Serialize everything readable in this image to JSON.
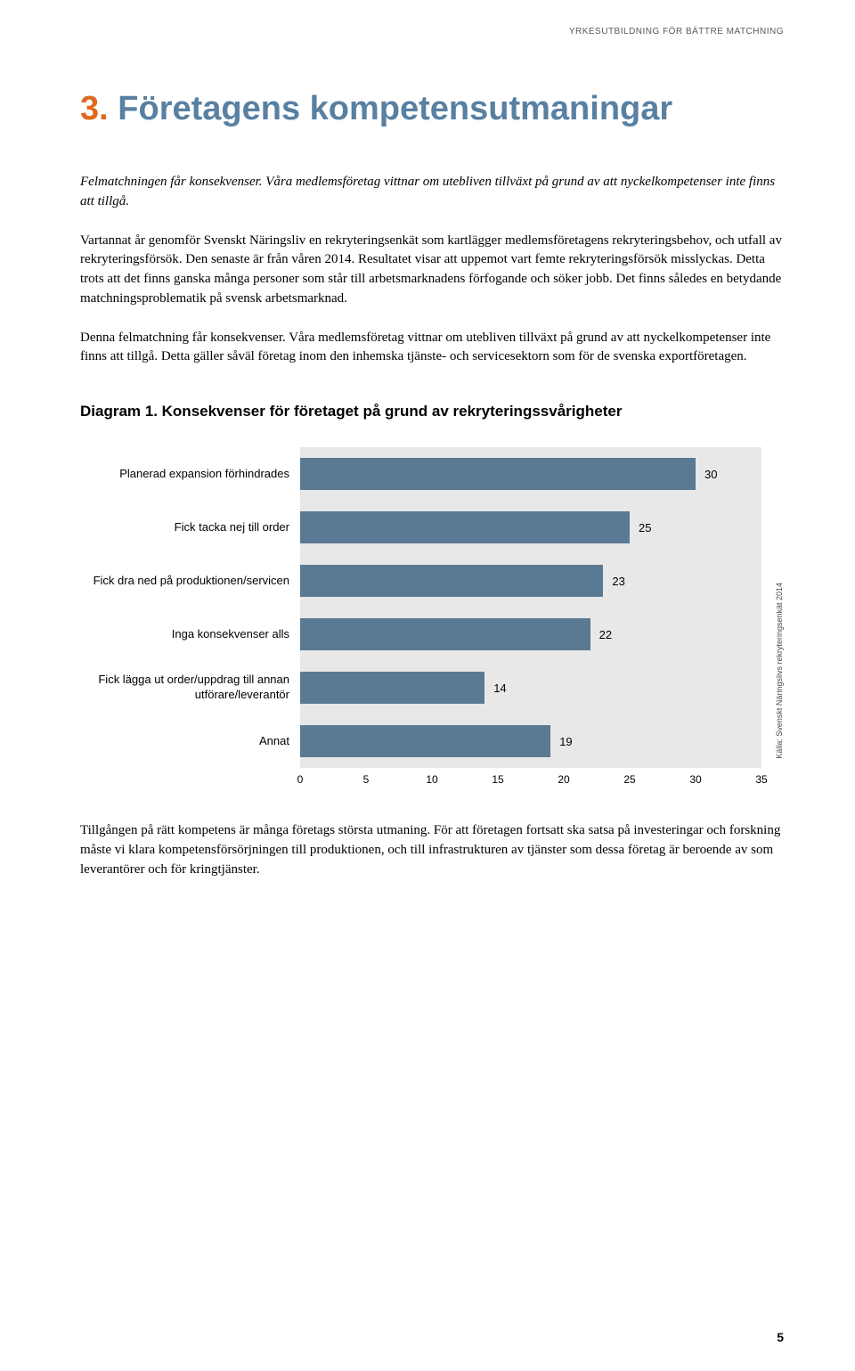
{
  "header": {
    "running_header": "YRKESUTBILDNING FÖR BÄTTRE MATCHNING"
  },
  "heading": {
    "number_color": "#e06a1f",
    "text_color": "#5880a2",
    "number": "3.",
    "title": "Företagens kompetensutmaningar"
  },
  "intro": "Felmatchningen får konsekvenser. Våra medlemsföretag vittnar om utebliven tillväxt på grund av att nyckelkompetenser inte finns att tillgå.",
  "para1": "Vartannat år genomför Svenskt Näringsliv en rekryteringsenkät som kartlägger medlemsföretagens rekryteringsbehov, och utfall av rekryteringsförsök. Den senaste är från våren 2014. Resultatet visar att uppemot vart femte rekryteringsförsök misslyckas. Detta trots att det finns ganska många personer som står till arbetsmarknadens förfogande och söker jobb. Det finns således en betydande matchningsproblematik på svensk arbetsmarknad.",
  "para2": "Denna felmatchning får konsekvenser. Våra medlemsföretag vittnar om utebliven tillväxt på grund av att nyckelkompetenser inte finns att tillgå. Detta gäller såväl företag inom den inhemska tjänste- och servicesektorn som för de svenska exportföretagen.",
  "chart": {
    "title": "Diagram 1. Konsekvenser för företaget på grund av rekryteringssvårigheter",
    "type": "bar",
    "bar_color": "#5a7a94",
    "plot_bg": "#e8e8e8",
    "x_min": 0,
    "x_max": 35,
    "x_tick_step": 5,
    "ticks": [
      "0",
      "5",
      "10",
      "15",
      "20",
      "25",
      "30",
      "35"
    ],
    "bars": [
      {
        "label": "Planerad expansion förhindrades",
        "value": 30
      },
      {
        "label": "Fick tacka nej till order",
        "value": 25
      },
      {
        "label": "Fick dra ned på produktionen/servicen",
        "value": 23
      },
      {
        "label": "Inga konsekvenser alls",
        "value": 22
      },
      {
        "label": "Fick lägga ut order/uppdrag till annan utförare/leverantör",
        "value": 14
      },
      {
        "label": "Annat",
        "value": 19
      }
    ],
    "source": "Källa: Svenskt Näringslivs rekryteringsenkät 2014"
  },
  "para3": "Tillgången på rätt kompetens är många företags största utmaning. För att företagen fortsatt ska satsa på investeringar och forskning måste vi klara kompetensförsörjningen till produktionen, och till infrastrukturen av tjänster som dessa företag är beroende av som leverantörer och för kringtjänster.",
  "page_number": "5"
}
